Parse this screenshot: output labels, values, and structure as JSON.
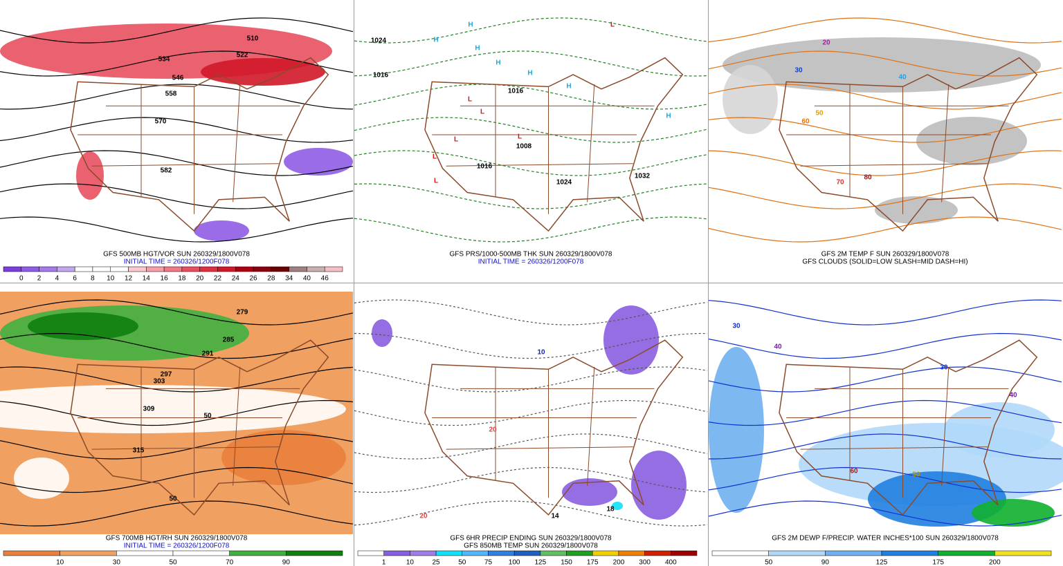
{
  "panels": [
    {
      "caption": [
        "GFS 500MB HGT/VOR SUN 260329/1800V078",
        "INITIAL TIME = 260326/1200F078"
      ],
      "colorbar": {
        "ticks": [
          "0",
          "2",
          "4",
          "6",
          "8",
          "10",
          "12",
          "14",
          "16",
          "18",
          "20",
          "22",
          "24",
          "26",
          "28",
          "34",
          "40",
          "46"
        ],
        "colors": [
          "#7b3fe0",
          "#8f5ce6",
          "#a67ae8",
          "#c2a6ee",
          "#ffffff",
          "#ffffff",
          "#ffffff",
          "#f9c9cf",
          "#f4a0aa",
          "#ef7a86",
          "#e8505f",
          "#e0303f",
          "#d01828",
          "#b00010",
          "#8a0010",
          "#6a0000",
          "#a08080",
          "#c8b0b0",
          "#f4c0c8"
        ]
      },
      "labels": [
        {
          "text": "510",
          "color": "#000000"
        },
        {
          "text": "522",
          "color": "#000000"
        },
        {
          "text": "534",
          "color": "#000000"
        },
        {
          "text": "546",
          "color": "#000000"
        },
        {
          "text": "558",
          "color": "#000000"
        },
        {
          "text": "570",
          "color": "#000000"
        },
        {
          "text": "582",
          "color": "#000000"
        }
      ]
    },
    {
      "caption": [
        "GFS PRS/1000-500MB THK SUN 260329/1800V078",
        "INITIAL TIME = 260326/1200F078"
      ],
      "labels": [
        {
          "text": "1024",
          "color": "#000000"
        },
        {
          "text": "1016",
          "color": "#000000"
        },
        {
          "text": "1016",
          "color": "#000000"
        },
        {
          "text": "1008",
          "color": "#000000"
        },
        {
          "text": "1016",
          "color": "#000000"
        },
        {
          "text": "1024",
          "color": "#000000"
        },
        {
          "text": "1032",
          "color": "#000000"
        },
        {
          "text": "H",
          "color": "#20a8d8"
        },
        {
          "text": "H",
          "color": "#20a8d8"
        },
        {
          "text": "H",
          "color": "#20a8d8"
        },
        {
          "text": "H",
          "color": "#20a8d8"
        },
        {
          "text": "H",
          "color": "#20a8d8"
        },
        {
          "text": "H",
          "color": "#20a8d8"
        },
        {
          "text": "H",
          "color": "#20a8d8"
        },
        {
          "text": "L",
          "color": "#e01010"
        },
        {
          "text": "L",
          "color": "#e01010"
        },
        {
          "text": "L",
          "color": "#e01010"
        },
        {
          "text": "L",
          "color": "#e01010"
        },
        {
          "text": "L",
          "color": "#e01010"
        },
        {
          "text": "L",
          "color": "#e01010"
        },
        {
          "text": "L",
          "color": "#e01010"
        }
      ]
    },
    {
      "caption": [
        "GFS 2M TEMP F SUN 260329/1800V078",
        "GFS CLOUDS (SOLID=LOW SLASH=MID DASH=HI)"
      ],
      "labels": [
        {
          "text": "20",
          "color": "#a020a0"
        },
        {
          "text": "30",
          "color": "#1040e0"
        },
        {
          "text": "40",
          "color": "#20a0e0"
        },
        {
          "text": "50",
          "color": "#e0a000"
        },
        {
          "text": "60",
          "color": "#f07000"
        },
        {
          "text": "70",
          "color": "#e03020"
        },
        {
          "text": "80",
          "color": "#a01010"
        }
      ]
    },
    {
      "caption": [
        "GFS 700MB HGT/RH SUN 260329/1800V078",
        "INITIAL TIME = 260326/1200F078"
      ],
      "colorbar": {
        "ticks": [
          "10",
          "30",
          "50",
          "70",
          "90"
        ],
        "colors": [
          "#e8803c",
          "#f0a060",
          "#ffffff",
          "#ffffff",
          "#40b040",
          "#108010"
        ]
      },
      "labels": [
        {
          "text": "279",
          "color": "#000000"
        },
        {
          "text": "285",
          "color": "#000000"
        },
        {
          "text": "291",
          "color": "#000000"
        },
        {
          "text": "297",
          "color": "#000000"
        },
        {
          "text": "303",
          "color": "#000000"
        },
        {
          "text": "309",
          "color": "#000000"
        },
        {
          "text": "315",
          "color": "#000000"
        },
        {
          "text": "50",
          "color": "#000000"
        },
        {
          "text": "50",
          "color": "#000000"
        }
      ]
    },
    {
      "caption": [
        "GFS 6HR PRECIP ENDING SUN 260329/1800V078",
        "GFS 850MB TEMP SUN 260329/1800V078"
      ],
      "colorbar": {
        "ticks": [
          "1",
          "10",
          "25",
          "50",
          "75",
          "100",
          "125",
          "150",
          "175",
          "200",
          "300",
          "400"
        ],
        "colors": [
          "#ffffff",
          "#8a5ee0",
          "#a27ce8",
          "#10e0f8",
          "#50b8f8",
          "#3080e0",
          "#2060c0",
          "#60c060",
          "#20a020",
          "#f0d000",
          "#f08000",
          "#d02000",
          "#a00000"
        ]
      },
      "labels": [
        {
          "text": "10",
          "color": "#1020c0"
        },
        {
          "text": "20",
          "color": "#e04040"
        },
        {
          "text": "20",
          "color": "#e04040"
        },
        {
          "text": "14",
          "color": "#000000"
        },
        {
          "text": "18",
          "color": "#000000"
        }
      ]
    },
    {
      "caption": [
        "GFS 2M DEWP F/PRECIP. WATER INCHES*100 SUN 260329/1800V078"
      ],
      "colorbar": {
        "ticks": [
          "50",
          "90",
          "125",
          "175",
          "200"
        ],
        "colors": [
          "#ffffff",
          "#b0d8f8",
          "#70b0f0",
          "#2080e0",
          "#10b030",
          "#f0e020"
        ]
      },
      "labels": [
        {
          "text": "30",
          "color": "#1030d0"
        },
        {
          "text": "40",
          "color": "#7020a0"
        },
        {
          "text": "50",
          "color": "#c09000"
        },
        {
          "text": "60",
          "color": "#a02020"
        },
        {
          "text": "30",
          "color": "#1030d0"
        },
        {
          "text": "40",
          "color": "#7020a0"
        }
      ]
    }
  ]
}
